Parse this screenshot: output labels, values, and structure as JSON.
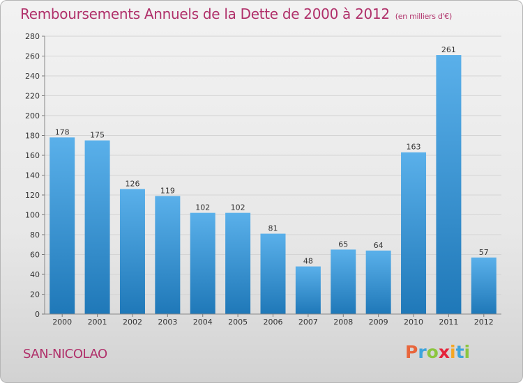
{
  "header": {
    "title": "Remboursements Annuels de la Dette de 2000 à 2012",
    "unit": "(en milliers d'€)"
  },
  "footer": {
    "place": "SAN-NICOLAO",
    "logo": [
      "P",
      "r",
      "o",
      "x",
      "i",
      "t",
      "i"
    ],
    "logo_colors": [
      "#e8663c",
      "#3da4dc",
      "#8cc63f",
      "#e5243b",
      "#f5a623",
      "#3da4dc",
      "#8cc63f"
    ]
  },
  "colors": {
    "bar_top": "#5ab0ea",
    "bar_bottom": "#1f78b8",
    "title": "#b0306a"
  },
  "chart_data": {
    "type": "bar",
    "categories": [
      "2000",
      "2001",
      "2002",
      "2003",
      "2004",
      "2005",
      "2006",
      "2007",
      "2008",
      "2009",
      "2010",
      "2011",
      "2012"
    ],
    "values": [
      178,
      175,
      126,
      119,
      102,
      102,
      81,
      48,
      65,
      64,
      163,
      261,
      57
    ],
    "title": "Remboursements Annuels de la Dette de 2000 à 2012",
    "xlabel": "",
    "ylabel": "",
    "ylim": [
      0,
      280
    ],
    "yticks": [
      0,
      20,
      40,
      60,
      80,
      100,
      120,
      140,
      160,
      180,
      200,
      220,
      240,
      260,
      280
    ],
    "grid": true,
    "data_labels": true
  }
}
